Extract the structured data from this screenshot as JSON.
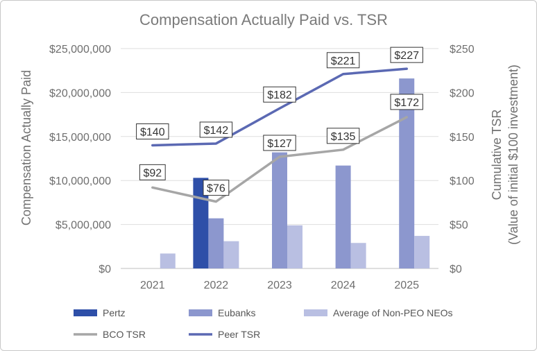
{
  "chart_data": {
    "type": "bar",
    "title": "Compensation Actually Paid vs. TSR",
    "categories": [
      "2021",
      "2022",
      "2023",
      "2024",
      "2025"
    ],
    "ylabel": "Compensation Actually Paid",
    "y2label_line1": "Cumulative TSR",
    "y2label_line2": "(Value of initial $100 investment)",
    "ylim": [
      0,
      25000000
    ],
    "y2lim": [
      0,
      250
    ],
    "yticks": [
      "$0",
      "$5,000,000",
      "$10,000,000",
      "$15,000,000",
      "$20,000,000",
      "$25,000,000"
    ],
    "y2ticks": [
      "$0",
      "$50",
      "$100",
      "$150",
      "$200",
      "$250"
    ],
    "grid": true,
    "legend_position": "bottom",
    "bar_series": [
      {
        "name": "Pertz",
        "color": "#2e4fa8",
        "values": [
          null,
          10300000,
          null,
          null,
          null
        ]
      },
      {
        "name": "Eubanks",
        "color": "#8c97ce",
        "values": [
          null,
          5700000,
          13200000,
          11700000,
          21600000
        ]
      },
      {
        "name": "Average of Non-PEO NEOs",
        "color": "#b9bfe2",
        "values": [
          1700000,
          3100000,
          4900000,
          2900000,
          3700000
        ]
      }
    ],
    "line_series": [
      {
        "name": "BCO TSR",
        "color": "#a6a6a6",
        "values": [
          92,
          76,
          127,
          135,
          172
        ],
        "labels": [
          "$92",
          "$76",
          "$127",
          "$135",
          "$172"
        ]
      },
      {
        "name": "Peer TSR",
        "color": "#5b69b3",
        "values": [
          140,
          142,
          182,
          221,
          227
        ],
        "labels": [
          "$140",
          "$142",
          "$182",
          "$221",
          "$227"
        ]
      }
    ]
  }
}
